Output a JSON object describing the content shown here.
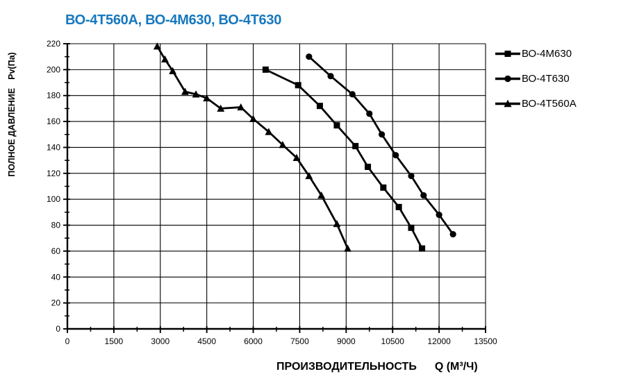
{
  "chart": {
    "title": "ВО-4Т560А, ВО-4М630, ВО-4Т630",
    "title_color": "#1778be",
    "y_axis_title": "ПОЛНОЕ ДАВЛЕНИЕ",
    "y_axis_unit": "Pv(Па)",
    "x_axis_title": "ПРОИЗВОДИТЕЛЬНОСТЬ",
    "x_axis_unit": "Q (М³/Ч)"
  },
  "legend": {
    "items": [
      {
        "label": "ВО-4М630",
        "marker": "square"
      },
      {
        "label": "ВО-4Т630",
        "marker": "circle"
      },
      {
        "label": "ВО-4Т560А",
        "marker": "triangle"
      }
    ]
  },
  "chart_data": {
    "type": "line",
    "title": "ВО-4Т560А, ВО-4М630, ВО-4Т630",
    "xlabel": "ПРОИЗВОДИТЕЛЬНОСТЬ Q (М³/Ч)",
    "ylabel": "ПОЛНОЕ ДАВЛЕНИЕ Pv(Па)",
    "xlim": [
      0,
      13500
    ],
    "ylim": [
      0,
      220
    ],
    "x_major_ticks": [
      0,
      1500,
      3000,
      4500,
      6000,
      7500,
      9000,
      10500,
      12000,
      13500
    ],
    "x_minor_step": 750,
    "y_major_ticks": [
      0,
      20,
      40,
      60,
      80,
      100,
      120,
      140,
      160,
      180,
      200,
      220
    ],
    "y_minor_step": 10,
    "grid": true,
    "legend_position": "right",
    "line_color": "#000000",
    "series": [
      {
        "name": "ВО-4Т560А",
        "marker": "triangle",
        "points": [
          [
            2900,
            218
          ],
          [
            3150,
            208
          ],
          [
            3400,
            199
          ],
          [
            3800,
            183
          ],
          [
            4150,
            181
          ],
          [
            4500,
            178
          ],
          [
            4950,
            170
          ],
          [
            5600,
            171
          ],
          [
            6000,
            162
          ],
          [
            6500,
            152
          ],
          [
            6950,
            142
          ],
          [
            7400,
            132
          ],
          [
            7800,
            118
          ],
          [
            8200,
            103
          ],
          [
            8700,
            81
          ],
          [
            9050,
            62
          ]
        ]
      },
      {
        "name": "ВО-4М630",
        "marker": "square",
        "points": [
          [
            6400,
            200
          ],
          [
            7450,
            188
          ],
          [
            8150,
            172
          ],
          [
            8700,
            157
          ],
          [
            9300,
            141
          ],
          [
            9700,
            125
          ],
          [
            10200,
            109
          ],
          [
            10700,
            94
          ],
          [
            11100,
            78
          ],
          [
            11450,
            62
          ]
        ]
      },
      {
        "name": "ВО-4Т630",
        "marker": "circle",
        "points": [
          [
            7800,
            210
          ],
          [
            8500,
            195
          ],
          [
            9200,
            181
          ],
          [
            9750,
            166
          ],
          [
            10150,
            150
          ],
          [
            10600,
            134
          ],
          [
            11100,
            118
          ],
          [
            11500,
            103
          ],
          [
            12000,
            88
          ],
          [
            12450,
            73
          ]
        ]
      }
    ]
  }
}
